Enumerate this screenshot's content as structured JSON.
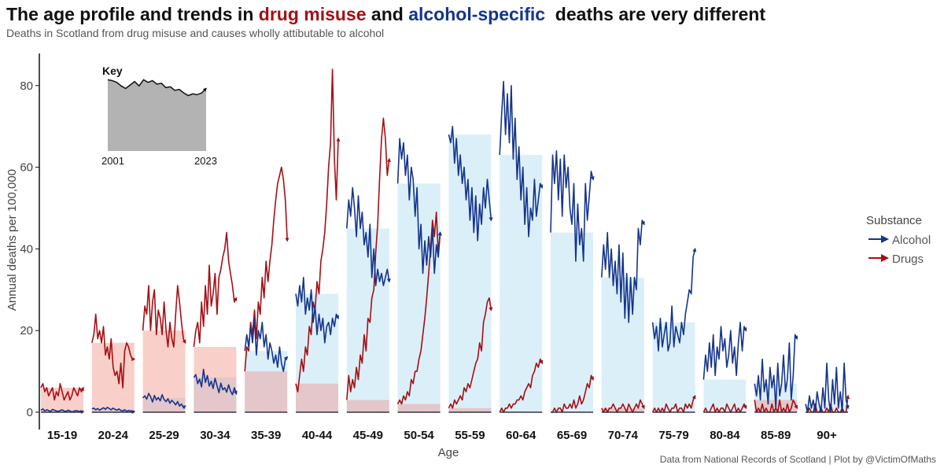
{
  "title": {
    "part1": "The age profile and trends in ",
    "drug": "drug misuse",
    "part2": " and ",
    "alcohol": "alcohol-specific",
    "part3": "  deaths are very different"
  },
  "subtitle": "Deaths in Scotland from drug misuse and causes wholly attibutable to alcohol",
  "caption": "Data from National Records of Scotland | Plot by @VictimOfMaths",
  "colors": {
    "drug_title": "#a50f15",
    "alcohol_title": "#14358c",
    "alcohol_line": "#14358c",
    "alcohol_fill": "#dbeff8",
    "drugs_line": "#a50f15",
    "drugs_fill": "#f9cfc9",
    "overlap_fill": "#e3c7ca",
    "key_fill": "#b3b3b3"
  },
  "key": {
    "title": "Key",
    "start_label": "2001",
    "end_label": "2023"
  },
  "legend": {
    "title": "Substance",
    "items": [
      {
        "label": "Alcohol",
        "color": "#14358c"
      },
      {
        "label": "Drugs",
        "color": "#a50f15"
      }
    ]
  },
  "chart_data": {
    "type": "area",
    "title": "The age profile and trends in drug misuse and alcohol-specific deaths are very different",
    "subtitle": "Deaths in Scotland from drug misuse and causes wholly attibutable to alcohol",
    "xlabel": "Age",
    "ylabel": "Annual deaths per 100,000",
    "ylim": [
      0,
      84
    ],
    "yticks": [
      0,
      20,
      40,
      60,
      80
    ],
    "years": [
      2001,
      2023
    ],
    "legend_position": "right",
    "grid": false,
    "categories": [
      "15-19",
      "20-24",
      "25-29",
      "30-34",
      "35-39",
      "40-44",
      "45-49",
      "50-54",
      "55-59",
      "60-64",
      "65-69",
      "70-74",
      "75-79",
      "80-84",
      "85-89",
      "90+"
    ],
    "series": [
      {
        "name": "Alcohol",
        "panels": [
          [
            0.5,
            0.8,
            0.3,
            0.6,
            0.4,
            0.2,
            0.7,
            0.5,
            0.3,
            0.2,
            0.4,
            0.6,
            0.3,
            0.2,
            0.5,
            0.3,
            0.1,
            0.2,
            0.4,
            0.3,
            0.2,
            0.1,
            0.2
          ],
          [
            0.8,
            1.0,
            0.6,
            0.9,
            0.5,
            0.8,
            1.1,
            0.7,
            1.2,
            0.9,
            0.6,
            1.0,
            0.7,
            0.5,
            0.8,
            0.4,
            0.3,
            0.6,
            0.2,
            0.4,
            0.3,
            0.1,
            0.2
          ],
          [
            3.5,
            4.0,
            3.2,
            4.6,
            3.8,
            2.5,
            4.1,
            3.0,
            3.6,
            2.8,
            4.3,
            3.1,
            2.6,
            3.3,
            2.2,
            2.9,
            2.4,
            1.8,
            2.6,
            1.5,
            2.0,
            1.2,
            1.5
          ],
          [
            8.5,
            9.2,
            7.0,
            8.1,
            6.2,
            10.5,
            7.3,
            9.0,
            6.4,
            7.6,
            5.8,
            8.3,
            6.5,
            4.8,
            7.1,
            5.5,
            6.0,
            4.9,
            6.7,
            5.2,
            4.3,
            6.0,
            4.5
          ],
          [
            15,
            19,
            16,
            21,
            17,
            23,
            14,
            20,
            18,
            22,
            16,
            19,
            13,
            17,
            15,
            12,
            14,
            11,
            16,
            12,
            10,
            13,
            13.5
          ],
          [
            29,
            26,
            31,
            27,
            33,
            24,
            28,
            25,
            30,
            22,
            26,
            19,
            24,
            20,
            23,
            17,
            21,
            22,
            19,
            23,
            21,
            24,
            23
          ],
          [
            45,
            52,
            48,
            55,
            50,
            43,
            53,
            45,
            49,
            41,
            44,
            38,
            46,
            33,
            40,
            31,
            35,
            32,
            34,
            31,
            33,
            35,
            32
          ],
          [
            56,
            67,
            62,
            66,
            58,
            63,
            52,
            60,
            57,
            48,
            55,
            40,
            46,
            34,
            42,
            36,
            43,
            38,
            45,
            34,
            41,
            38,
            44
          ],
          [
            68,
            66,
            70,
            61,
            67,
            58,
            63,
            56,
            60,
            52,
            57,
            47,
            55,
            44,
            53,
            42,
            51,
            46,
            55,
            50,
            57,
            52,
            47
          ],
          [
            63,
            73,
            81,
            68,
            78,
            66,
            80,
            62,
            72,
            57,
            65,
            52,
            60,
            46,
            55,
            43,
            50,
            47,
            57,
            48,
            52,
            56,
            55
          ],
          [
            44,
            63,
            56,
            64,
            52,
            62,
            48,
            63,
            55,
            60,
            50,
            46,
            56,
            37,
            51,
            41,
            45,
            37,
            56,
            47,
            53,
            59,
            57
          ],
          [
            33,
            41,
            35,
            44,
            33,
            40,
            31,
            37,
            29,
            41,
            27,
            39,
            23,
            34,
            22,
            33,
            24,
            33,
            30,
            45,
            41,
            47,
            46
          ],
          [
            22,
            18,
            21,
            15,
            23,
            16,
            19,
            22,
            15,
            17,
            26,
            16,
            21,
            19,
            17,
            22,
            19,
            24,
            27,
            30,
            29,
            38,
            40
          ],
          [
            8,
            14,
            10,
            17,
            11,
            19,
            9,
            16,
            13,
            21,
            15,
            18,
            11,
            14,
            20,
            12,
            16,
            9,
            17,
            22,
            15,
            21,
            20
          ],
          [
            7,
            4,
            9,
            3,
            13,
            5,
            8,
            2,
            11,
            6,
            9,
            1,
            12,
            4,
            7,
            14,
            5,
            8,
            17,
            3,
            9,
            19,
            18
          ],
          [
            2,
            0,
            4,
            1,
            3,
            0,
            5,
            2,
            0,
            6,
            1,
            12,
            3,
            0,
            8,
            2,
            11,
            1,
            5,
            0,
            12,
            3,
            1
          ]
        ]
      },
      {
        "name": "Drugs",
        "panels": [
          [
            6,
            7,
            5,
            6,
            4,
            5,
            6,
            3,
            5,
            4,
            7,
            5,
            3,
            4,
            5,
            3,
            4,
            6,
            5,
            4,
            6,
            5,
            6
          ],
          [
            17,
            19,
            24,
            18,
            20,
            17,
            21,
            14,
            16,
            13,
            18,
            11,
            9,
            10,
            7,
            12,
            6,
            15,
            17,
            16,
            14,
            13,
            13
          ],
          [
            20,
            26,
            24,
            31,
            20,
            27,
            30,
            19,
            25,
            23,
            19,
            27,
            20,
            16,
            22,
            18,
            16,
            24,
            31,
            27,
            22,
            18,
            17
          ],
          [
            16,
            20,
            22,
            17,
            27,
            21,
            31,
            24,
            36,
            26,
            29,
            34,
            24,
            33,
            35,
            38,
            40,
            44,
            37,
            34,
            31,
            27,
            28
          ],
          [
            10,
            16,
            15,
            22,
            19,
            25,
            18,
            27,
            24,
            33,
            28,
            37,
            32,
            37,
            41,
            47,
            52,
            56,
            58,
            60,
            57,
            52,
            42
          ],
          [
            7,
            5,
            9,
            13,
            10,
            16,
            14,
            21,
            19,
            27,
            25,
            32,
            29,
            37,
            40,
            44,
            51,
            60,
            66,
            84,
            62,
            52,
            67
          ],
          [
            3,
            9,
            5,
            8,
            6,
            11,
            8,
            14,
            12,
            19,
            15,
            23,
            22,
            28,
            30,
            39,
            46,
            57,
            67,
            72,
            67,
            58,
            62
          ],
          [
            2,
            3,
            2,
            4,
            3,
            5,
            4,
            8,
            7,
            10,
            10,
            13,
            15,
            19,
            23,
            28,
            34,
            40,
            47,
            43,
            49,
            39,
            44
          ],
          [
            1,
            2,
            1,
            3,
            2,
            3,
            4,
            3,
            6,
            5,
            7,
            6,
            8,
            10,
            12,
            13,
            17,
            15,
            22,
            24,
            27,
            28,
            25
          ],
          [
            0,
            1,
            0,
            1,
            1,
            2,
            1,
            2,
            2,
            3,
            3,
            4,
            3,
            5,
            6,
            7,
            6,
            9,
            10,
            12,
            11,
            13,
            12
          ],
          [
            0,
            0,
            1,
            0,
            1,
            1,
            0,
            2,
            1,
            1,
            2,
            1,
            3,
            1,
            2,
            4,
            2,
            3,
            5,
            7,
            6,
            9,
            8
          ],
          [
            1,
            0,
            1,
            0,
            1,
            1,
            2,
            1,
            0,
            1,
            1,
            2,
            1,
            0,
            2,
            1,
            0,
            1,
            2,
            1,
            3,
            2,
            1
          ],
          [
            0,
            1,
            0,
            1,
            0,
            1,
            0,
            2,
            1,
            0,
            1,
            1,
            2,
            0,
            1,
            1,
            0,
            2,
            1,
            2,
            1,
            3,
            4
          ],
          [
            0,
            1,
            0,
            0,
            1,
            2,
            0,
            1,
            0,
            1,
            1,
            0,
            2,
            1,
            0,
            1,
            2,
            0,
            1,
            0,
            1,
            2,
            1
          ],
          [
            3,
            0,
            1,
            0,
            2,
            0,
            1,
            0,
            0,
            2,
            0,
            1,
            0,
            3,
            0,
            1,
            0,
            2,
            0,
            1,
            3,
            2,
            1
          ],
          [
            0,
            0,
            1,
            0,
            0,
            2,
            0,
            0,
            1,
            0,
            0,
            1,
            0,
            2,
            0,
            0,
            1,
            0,
            0,
            1,
            0,
            0,
            4
          ]
        ]
      }
    ],
    "key_values": [
      81,
      80,
      78,
      74,
      71,
      75,
      79,
      74,
      81,
      78,
      80,
      76,
      77,
      72,
      73,
      69,
      70,
      66,
      63,
      65,
      64,
      66,
      71
    ]
  }
}
